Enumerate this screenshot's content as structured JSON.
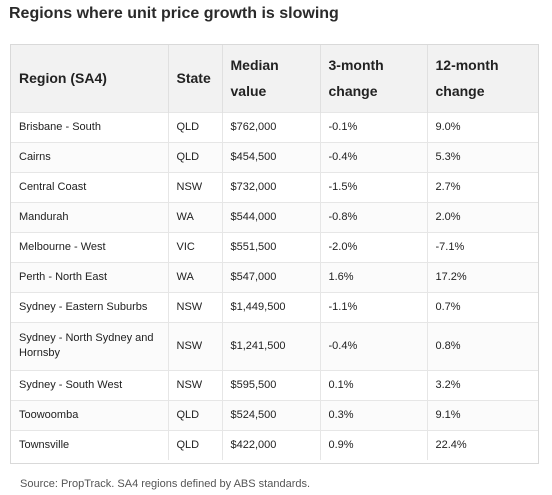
{
  "title": "Regions where unit price growth is slowing",
  "table": {
    "headers": {
      "region": "Region (SA4)",
      "state": "State",
      "median_value": "Median value",
      "change_3m": "3-month change",
      "change_12m": "12-month change"
    },
    "rows": [
      {
        "region": "Brisbane - South",
        "state": "QLD",
        "median_value": "$762,000",
        "change_3m": "-0.1%",
        "change_12m": "9.0%"
      },
      {
        "region": "Cairns",
        "state": "QLD",
        "median_value": "$454,500",
        "change_3m": "-0.4%",
        "change_12m": "5.3%"
      },
      {
        "region": "Central Coast",
        "state": "NSW",
        "median_value": "$732,000",
        "change_3m": "-1.5%",
        "change_12m": "2.7%"
      },
      {
        "region": "Mandurah",
        "state": "WA",
        "median_value": "$544,000",
        "change_3m": "-0.8%",
        "change_12m": "2.0%"
      },
      {
        "region": "Melbourne - West",
        "state": "VIC",
        "median_value": "$551,500",
        "change_3m": "-2.0%",
        "change_12m": "-7.1%"
      },
      {
        "region": "Perth - North East",
        "state": "WA",
        "median_value": "$547,000",
        "change_3m": "1.6%",
        "change_12m": "17.2%"
      },
      {
        "region": "Sydney - Eastern Suburbs",
        "state": "NSW",
        "median_value": "$1,449,500",
        "change_3m": "-1.1%",
        "change_12m": "0.7%"
      },
      {
        "region": "Sydney - North Sydney and Hornsby",
        "state": "NSW",
        "median_value": "$1,241,500",
        "change_3m": "-0.4%",
        "change_12m": "0.8%"
      },
      {
        "region": "Sydney - South West",
        "state": "NSW",
        "median_value": "$595,500",
        "change_3m": "0.1%",
        "change_12m": "3.2%"
      },
      {
        "region": "Toowoomba",
        "state": "QLD",
        "median_value": "$524,500",
        "change_3m": "0.3%",
        "change_12m": "9.1%"
      },
      {
        "region": "Townsville",
        "state": "QLD",
        "median_value": "$422,000",
        "change_3m": "0.9%",
        "change_12m": "22.4%"
      }
    ]
  },
  "source": "Source: PropTrack. SA4 regions defined by ABS standards."
}
